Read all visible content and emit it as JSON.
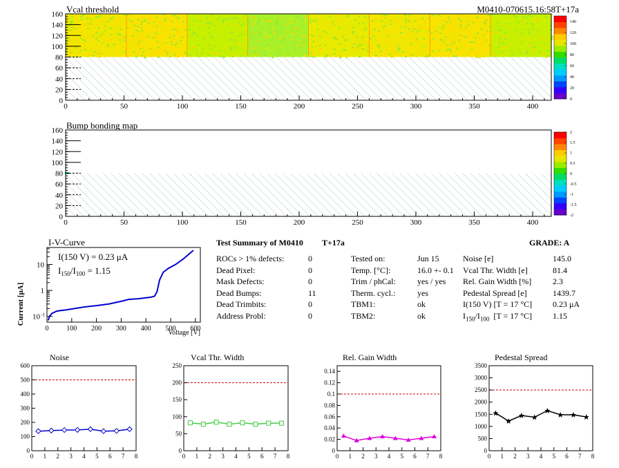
{
  "header": {
    "map1_title": "Vcal threshold",
    "module_tag": "M0410-070615.16:58T+17a",
    "map2_title": "Bump bonding map"
  },
  "maps": {
    "y_ticks": [
      0,
      20,
      40,
      60,
      80,
      100,
      120,
      140,
      160
    ],
    "x_ticks": [
      0,
      50,
      100,
      150,
      200,
      250,
      300,
      350,
      400
    ],
    "x_range": [
      0,
      416
    ],
    "y_range": [
      0,
      160
    ],
    "filled_y_range": [
      80,
      160
    ],
    "map1_palette": [
      "#f2e600",
      "#f8e300",
      "#c6f000",
      "#a8f02a",
      "#e8ea00"
    ],
    "map1_scale": [
      0,
      20,
      40,
      60,
      80,
      100,
      120,
      140
    ],
    "map2_scale": [
      -2,
      -1.5,
      -1,
      -0.5,
      0,
      0.5,
      1,
      1.5,
      2
    ],
    "colorbar": [
      "#6600cc",
      "#3300ff",
      "#0044ff",
      "#0099ff",
      "#00ccff",
      "#00e0c0",
      "#00dd66",
      "#33dd00",
      "#99ee00",
      "#e6e600",
      "#ffcc00",
      "#ff8800",
      "#ff4400",
      "#ff0000"
    ]
  },
  "iv": {
    "title": "I-V-Curve",
    "ylabel": "Current [μA]",
    "xlabel": "Voltage [V]",
    "note1": "I(150 V) = 0.23 μA",
    "note2a": "I",
    "note2b": "150",
    "note2c": "/I",
    "note2d": "100",
    "note2e": " =  1.15",
    "x_ticks": [
      0,
      100,
      200,
      300,
      400,
      500,
      600
    ],
    "y_tick_labels": [
      "10",
      "1",
      "10"
    ],
    "y_tick_sup": "-1",
    "color": "#0000cc"
  },
  "summary": {
    "title": "Test Summary of M0410",
    "tag": "T+17a",
    "grade": "GRADE:  A",
    "left": [
      {
        "label": "ROCs > 1% defects:",
        "value": "0"
      },
      {
        "label": "Dead Pixel:",
        "value": "0"
      },
      {
        "label": "Mask Defects:",
        "value": "0"
      },
      {
        "label": "Dead Bumps:",
        "value": "11"
      },
      {
        "label": "Dead Trimbits:",
        "value": "0"
      },
      {
        "label": "Address Probl:",
        "value": "0"
      }
    ],
    "mid": [
      {
        "label": "Tested on:",
        "value": "Jun 15"
      },
      {
        "label": "Temp. [°C]:",
        "value": "16.0 +- 0.1"
      },
      {
        "label": "Trim / phCal:",
        "value": "yes / yes"
      },
      {
        "label": "Therm. cycl.:",
        "value": "yes"
      },
      {
        "label": "TBM1:",
        "value": "ok"
      },
      {
        "label": "TBM2:",
        "value": "ok"
      }
    ],
    "right": [
      {
        "label": "Noise [e]",
        "value": "145.0"
      },
      {
        "label": "Vcal Thr. Width [e]",
        "value": "81.4"
      },
      {
        "label": "Rel. Gain Width [%]",
        "value": "2.3"
      },
      {
        "label": "Pedestal Spread [e]",
        "value": "1439.7"
      },
      {
        "label": "I(150 V) [T = 17 °C]",
        "value": "0.23 μA"
      }
    ],
    "ratio_row": {
      "a": "I",
      "b": "150",
      "c": "/I",
      "d": "100",
      "e": "  [T = 17 °C]",
      "value": "1.15"
    }
  },
  "chart_data": [
    {
      "type": "line",
      "title": "Noise",
      "x": [
        0.5,
        1.5,
        2.5,
        3.5,
        4.5,
        5.5,
        6.5,
        7.5
      ],
      "values": [
        138,
        142,
        146,
        147,
        152,
        138,
        140,
        152
      ],
      "xlim": [
        0,
        8
      ],
      "ylim": [
        0,
        600
      ],
      "yticks": [
        0,
        100,
        200,
        300,
        400,
        500,
        600
      ],
      "xticks": [
        0,
        1,
        2,
        3,
        4,
        5,
        6,
        7,
        8
      ],
      "threshold": 500,
      "color": "#0000cc",
      "marker": "diamond"
    },
    {
      "type": "line",
      "title": "Vcal Thr. Width",
      "x": [
        0.5,
        1.5,
        2.5,
        3.5,
        4.5,
        5.5,
        6.5,
        7.5
      ],
      "values": [
        82,
        78,
        84,
        78,
        82,
        78,
        81,
        81
      ],
      "xlim": [
        0,
        8
      ],
      "ylim": [
        0,
        250
      ],
      "yticks": [
        0,
        50,
        100,
        150,
        200,
        250
      ],
      "xticks": [
        0,
        1,
        2,
        3,
        4,
        5,
        6,
        7,
        8
      ],
      "threshold": 200,
      "color": "#44cc44",
      "marker": "square"
    },
    {
      "type": "line",
      "title": "Rel. Gain Width",
      "x": [
        0.5,
        1.5,
        2.5,
        3.5,
        4.5,
        5.5,
        6.5,
        7.5
      ],
      "values": [
        0.026,
        0.018,
        0.022,
        0.025,
        0.022,
        0.019,
        0.022,
        0.025
      ],
      "xlim": [
        0,
        8
      ],
      "ylim": [
        0,
        0.15
      ],
      "yticks": [
        0,
        0.02,
        0.04,
        0.06,
        0.08,
        0.1,
        0.12,
        0.14
      ],
      "xticks": [
        0,
        1,
        2,
        3,
        4,
        5,
        6,
        7,
        8
      ],
      "threshold": 0.1,
      "color": "#dd00dd",
      "marker": "triangle"
    },
    {
      "type": "line",
      "title": "Pedestal Spread",
      "x": [
        0.5,
        1.5,
        2.5,
        3.5,
        4.5,
        5.5,
        6.5,
        7.5
      ],
      "values": [
        1550,
        1220,
        1450,
        1380,
        1650,
        1480,
        1480,
        1390
      ],
      "xlim": [
        0,
        8
      ],
      "ylim": [
        0,
        3500
      ],
      "yticks": [
        0,
        500,
        1000,
        1500,
        2000,
        2500,
        3000,
        3500
      ],
      "xticks": [
        0,
        1,
        2,
        3,
        4,
        5,
        6,
        7,
        8
      ],
      "threshold": 2500,
      "color": "#000000",
      "marker": "star"
    }
  ]
}
